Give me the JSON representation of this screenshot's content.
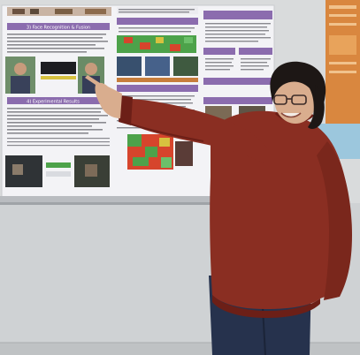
{
  "scene": {
    "poster": {
      "heading": "3) Face Recognition & Fusion",
      "section_heading": "4) Experimental Results"
    }
  },
  "colors": {
    "wall": "#dcdedf",
    "poster_paper": "#f4f4f6",
    "poster_header": "#8b6cae",
    "sweater": "#8a2e22",
    "sweater_shadow": "#6c1f17",
    "jeans": "#26324d",
    "hair": "#1d1715",
    "skin": "#d9ad8e",
    "heatmap_green": "#4da24a",
    "heatmap_red": "#d6452c",
    "heatmap_yellow": "#d7c13f"
  }
}
